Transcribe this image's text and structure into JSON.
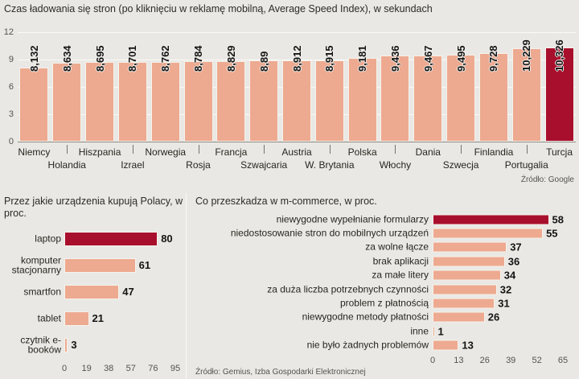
{
  "colors": {
    "bar": "#edaa90",
    "highlight": "#a80f2c",
    "background": "#e9e8e4"
  },
  "chart_data": [
    {
      "type": "bar",
      "title": "Czas ładowania się stron (po kliknięciu w reklamę mobilną, Average Speed Index), w sekundach",
      "source": "Źródło: Google",
      "categories": [
        "Niemcy",
        "Holandia",
        "Hiszpania",
        "Izrael",
        "Norwegia",
        "Rosja",
        "Francja",
        "Szwajcaria",
        "Austria",
        "W. Brytania",
        "Polska",
        "Włochy",
        "Dania",
        "Szwecja",
        "Finlandia",
        "Portugalia",
        "Turcja"
      ],
      "values": [
        8.132,
        8.634,
        8.695,
        8.701,
        8.762,
        8.784,
        8.829,
        8.89,
        8.912,
        8.915,
        9.181,
        9.436,
        9.467,
        9.495,
        9.728,
        10.229,
        10.326
      ],
      "value_labels": [
        "8,132",
        "8,634",
        "8,695",
        "8,701",
        "8,762",
        "8,784",
        "8,829",
        "8,89",
        "8,912",
        "8,915",
        "9,181",
        "9,436",
        "9,467",
        "9,495",
        "9,728",
        "10,229",
        "10,326"
      ],
      "highlight_index": 16,
      "ylim": [
        0,
        12
      ],
      "yticks": [
        0,
        3,
        6,
        9,
        12
      ],
      "xlabel": "",
      "ylabel": "",
      "grid": true,
      "legend": false
    },
    {
      "type": "bar-horizontal",
      "title": "Przez jakie urządzenia kupują Polacy, w proc.",
      "categories": [
        "laptop",
        "komputer stacjonarny",
        "smartfon",
        "tablet",
        "czytnik e-booków"
      ],
      "values": [
        80,
        61,
        47,
        21,
        3
      ],
      "highlight_index": 0,
      "xlim": [
        0,
        95
      ],
      "xticks": [
        0,
        19,
        38,
        57,
        76,
        95
      ],
      "grid": false,
      "legend": false
    },
    {
      "type": "bar-horizontal",
      "title": "Co przeszkadza w m-commerce, w proc.",
      "source": "Źródło: Gemius, Izba Gospodarki Elektronicznej",
      "categories": [
        "niewygodne wypełnianie formularzy",
        "niedostosowanie stron do mobilnych urządzeń",
        "za wolne łącze",
        "brak aplikacji",
        "za małe litery",
        "za duża liczba potrzebnych czynności",
        "problem z płatnością",
        "niewygodne metody płatności",
        "inne",
        "nie było żadnych problemów"
      ],
      "values": [
        58,
        55,
        37,
        36,
        34,
        32,
        31,
        26,
        1,
        13
      ],
      "highlight_index": 0,
      "xlim": [
        0,
        65
      ],
      "xticks": [
        0,
        13,
        26,
        39,
        52,
        65
      ],
      "grid": false,
      "legend": false
    }
  ]
}
